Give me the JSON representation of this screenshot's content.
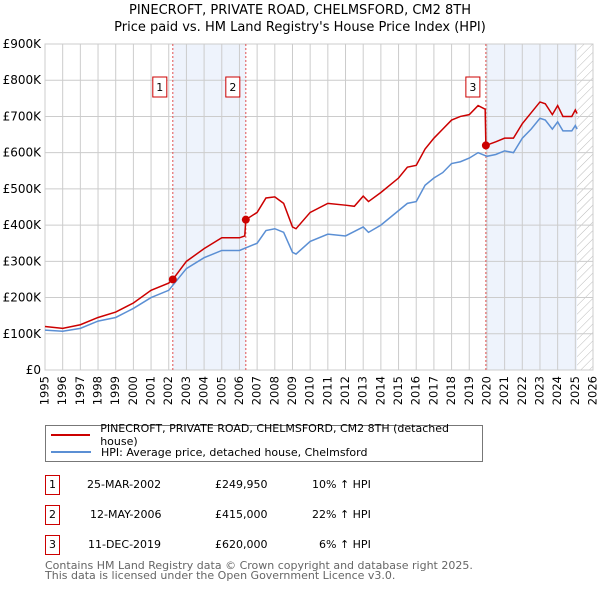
{
  "chart_data": {
    "type": "line",
    "title": "PINECROFT, PRIVATE ROAD, CHELMSFORD, CM2 8TH",
    "subtitle": "Price paid vs. HM Land Registry's House Price Index (HPI)",
    "xlim": [
      1995,
      2026
    ],
    "ylim": [
      0,
      900000
    ],
    "y_ticks": [
      {
        "v": 0,
        "label": "£0"
      },
      {
        "v": 100000,
        "label": "£100K"
      },
      {
        "v": 200000,
        "label": "£200K"
      },
      {
        "v": 300000,
        "label": "£300K"
      },
      {
        "v": 400000,
        "label": "£400K"
      },
      {
        "v": 500000,
        "label": "£500K"
      },
      {
        "v": 600000,
        "label": "£600K"
      },
      {
        "v": 700000,
        "label": "£700K"
      },
      {
        "v": 800000,
        "label": "£800K"
      },
      {
        "v": 900000,
        "label": "£900K"
      }
    ],
    "x_ticks": [
      "1995",
      "1996",
      "1997",
      "1998",
      "1999",
      "2000",
      "2001",
      "2002",
      "2003",
      "2004",
      "2005",
      "2006",
      "2007",
      "2008",
      "2009",
      "2010",
      "2011",
      "2012",
      "2013",
      "2014",
      "2015",
      "2016",
      "2017",
      "2018",
      "2019",
      "2020",
      "2021",
      "2022",
      "2023",
      "2024",
      "2025",
      "2026"
    ],
    "grid": true,
    "shaded_ranges": [
      [
        2002.23,
        2006.36
      ],
      [
        2019.94,
        2025.1
      ]
    ],
    "forecast_hatch_from": 2025.1,
    "series": [
      {
        "name": "PINECROFT, PRIVATE ROAD, CHELMSFORD, CM2 8TH (detached house)",
        "color": "#cc0000",
        "points": [
          [
            1995,
            120
          ],
          [
            1996,
            115
          ],
          [
            1997,
            125
          ],
          [
            1998,
            145
          ],
          [
            1999,
            160
          ],
          [
            2000,
            185
          ],
          [
            2001,
            220
          ],
          [
            2002,
            240
          ],
          [
            2002.23,
            250
          ],
          [
            2003,
            300
          ],
          [
            2004,
            335
          ],
          [
            2005,
            365
          ],
          [
            2006,
            365
          ],
          [
            2006.3,
            370
          ],
          [
            2006.36,
            415
          ],
          [
            2007,
            435
          ],
          [
            2007.5,
            475
          ],
          [
            2008,
            478
          ],
          [
            2008.5,
            460
          ],
          [
            2009,
            395
          ],
          [
            2009.2,
            390
          ],
          [
            2010,
            435
          ],
          [
            2011,
            460
          ],
          [
            2012,
            455
          ],
          [
            2012.5,
            452
          ],
          [
            2013,
            480
          ],
          [
            2013.3,
            465
          ],
          [
            2014,
            490
          ],
          [
            2015,
            530
          ],
          [
            2015.5,
            560
          ],
          [
            2016,
            565
          ],
          [
            2016.5,
            610
          ],
          [
            2017,
            640
          ],
          [
            2017.5,
            665
          ],
          [
            2018,
            690
          ],
          [
            2018.5,
            700
          ],
          [
            2019,
            705
          ],
          [
            2019.5,
            730
          ],
          [
            2019.9,
            720
          ],
          [
            2019.94,
            620
          ],
          [
            2020.5,
            630
          ],
          [
            2021,
            640
          ],
          [
            2021.5,
            640
          ],
          [
            2022,
            680
          ],
          [
            2022.5,
            710
          ],
          [
            2023,
            740
          ],
          [
            2023.3,
            735
          ],
          [
            2023.7,
            705
          ],
          [
            2024,
            730
          ],
          [
            2024.3,
            700
          ],
          [
            2024.8,
            700
          ],
          [
            2025,
            718
          ],
          [
            2025.1,
            708
          ]
        ]
      },
      {
        "name": "HPI: Average price, detached house, Chelmsford",
        "color": "#5b8fd4",
        "points": [
          [
            1995,
            110
          ],
          [
            1996,
            107
          ],
          [
            1997,
            115
          ],
          [
            1998,
            135
          ],
          [
            1999,
            145
          ],
          [
            2000,
            170
          ],
          [
            2001,
            200
          ],
          [
            2002,
            220
          ],
          [
            2003,
            280
          ],
          [
            2004,
            310
          ],
          [
            2005,
            330
          ],
          [
            2006,
            330
          ],
          [
            2007,
            350
          ],
          [
            2007.5,
            385
          ],
          [
            2008,
            390
          ],
          [
            2008.5,
            380
          ],
          [
            2009,
            325
          ],
          [
            2009.2,
            320
          ],
          [
            2010,
            355
          ],
          [
            2011,
            375
          ],
          [
            2012,
            370
          ],
          [
            2013,
            395
          ],
          [
            2013.3,
            380
          ],
          [
            2014,
            400
          ],
          [
            2015,
            440
          ],
          [
            2015.5,
            460
          ],
          [
            2016,
            465
          ],
          [
            2016.5,
            510
          ],
          [
            2017,
            530
          ],
          [
            2017.5,
            545
          ],
          [
            2018,
            570
          ],
          [
            2018.5,
            575
          ],
          [
            2019,
            585
          ],
          [
            2019.5,
            600
          ],
          [
            2020,
            590
          ],
          [
            2020.5,
            595
          ],
          [
            2021,
            605
          ],
          [
            2021.5,
            600
          ],
          [
            2022,
            640
          ],
          [
            2022.5,
            665
          ],
          [
            2023,
            695
          ],
          [
            2023.3,
            690
          ],
          [
            2023.7,
            665
          ],
          [
            2024,
            685
          ],
          [
            2024.3,
            660
          ],
          [
            2024.8,
            660
          ],
          [
            2025,
            675
          ],
          [
            2025.1,
            665
          ]
        ]
      }
    ],
    "y_unit": "thousands GBP",
    "sales": [
      {
        "label": "1",
        "x": 2002.23,
        "y": 249.95,
        "date": "25-MAR-2002",
        "price": "£249,950",
        "hpi": "10% ↑ HPI"
      },
      {
        "label": "2",
        "x": 2006.36,
        "y": 415,
        "date": "12-MAY-2006",
        "price": "£415,000",
        "hpi": "22% ↑ HPI"
      },
      {
        "label": "3",
        "x": 2019.94,
        "y": 620,
        "date": "11-DEC-2019",
        "price": "£620,000",
        "hpi": "6% ↑ HPI"
      }
    ]
  },
  "footer": {
    "line1": "Contains HM Land Registry data © Crown copyright and database right 2025.",
    "line2": "This data is licensed under the Open Government Licence v3.0."
  }
}
